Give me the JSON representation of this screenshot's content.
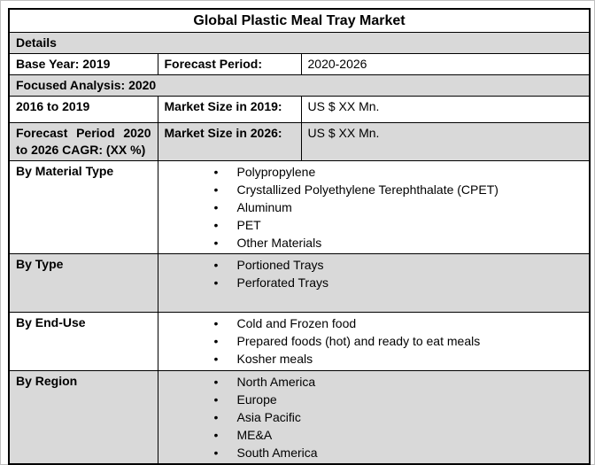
{
  "title": "Global Plastic Meal Tray Market",
  "colors": {
    "band": "#d9d9d9",
    "line": "#000000",
    "page": "#ffffff",
    "frame": "#c0c0c0"
  },
  "rows": {
    "details": "Details",
    "base_year": "Base Year: 2019",
    "forecast_period_label": "Forecast Period:",
    "forecast_period_value": "2020-2026",
    "focused_analysis": "Focused Analysis: 2020",
    "hist_period": "2016 to 2019",
    "market_size_2019_label": "Market Size in 2019:",
    "market_size_2019_value": "US $ XX Mn.",
    "cagr_label": "Forecast Period 2020 to 2026 CAGR: (XX %)",
    "market_size_2026_label": "Market Size in 2026:",
    "market_size_2026_value": "US $ XX Mn."
  },
  "segments": [
    {
      "label": "By Material Type",
      "items": [
        "Polypropylene",
        "Crystallized Polyethylene Terephthalate (CPET)",
        "Aluminum",
        "PET",
        "Other Materials"
      ]
    },
    {
      "label": "By Type",
      "items": [
        "Portioned Trays",
        "Perforated Trays"
      ]
    },
    {
      "label": "By End-Use",
      "items": [
        "Cold and Frozen food",
        "Prepared foods (hot) and ready to eat meals",
        "Kosher meals"
      ]
    },
    {
      "label": "By Region",
      "items": [
        "North America",
        "Europe",
        "Asia Pacific",
        "ME&A",
        "South America"
      ]
    }
  ]
}
